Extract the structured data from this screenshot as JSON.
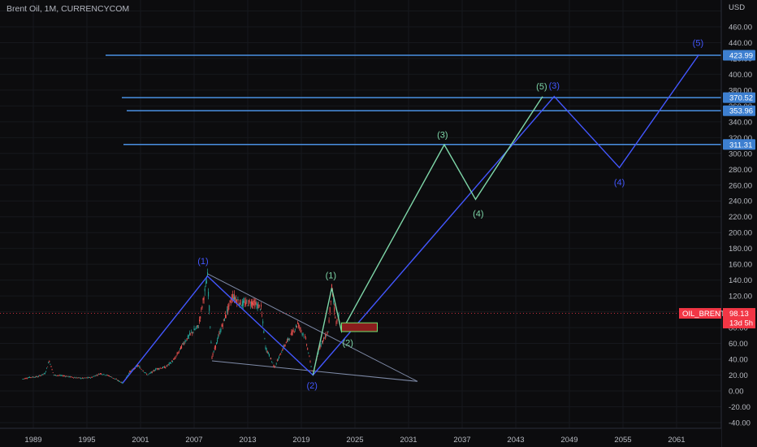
{
  "header": {
    "symbol": "Brent Oil, 1M, CURRENCYCOM",
    "currency": "USD"
  },
  "chart_data": {
    "type": "line",
    "title": "Brent Oil, 1M, CURRENCYCOM",
    "ylabel": "USD",
    "ylim": [
      -48,
      485
    ],
    "xlim": [
      1987.5,
      2068
    ],
    "x_ticks": [
      "1989",
      "1995",
      "2001",
      "2007",
      "2013",
      "2019",
      "2025",
      "2031",
      "2037",
      "2043",
      "2049",
      "2055",
      "2061"
    ],
    "y_ticks": [
      "-40.00",
      "-20.00",
      "0.00",
      "20.00",
      "40.00",
      "60.00",
      "80.00",
      "100.00",
      "120.00",
      "140.00",
      "160.00",
      "180.00",
      "200.00",
      "220.00",
      "240.00",
      "260.00",
      "280.00",
      "300.00",
      "320.00",
      "340.00",
      "360.00",
      "380.00",
      "400.00",
      "420.00",
      "440.00",
      "460.00",
      "480.00"
    ],
    "price": {
      "symbol": "OIL_BRENT",
      "last": "98.13",
      "countdown": "13d 5h",
      "color": "#f23645",
      "points": [
        [
          1987.8,
          15
        ],
        [
          1988.5,
          17
        ],
        [
          1989.5,
          18
        ],
        [
          1990.3,
          22
        ],
        [
          1990.8,
          38
        ],
        [
          1991.3,
          20
        ],
        [
          1992.5,
          19
        ],
        [
          1993.5,
          17
        ],
        [
          1994.5,
          16
        ],
        [
          1995.5,
          17
        ],
        [
          1996.5,
          22
        ],
        [
          1997.5,
          19
        ],
        [
          1998.5,
          13
        ],
        [
          1999.0,
          10
        ],
        [
          1999.8,
          24
        ],
        [
          2000.7,
          32
        ],
        [
          2001.8,
          20
        ],
        [
          2002.8,
          28
        ],
        [
          2003.8,
          30
        ],
        [
          2004.8,
          40
        ],
        [
          2005.8,
          60
        ],
        [
          2006.6,
          72
        ],
        [
          2007.5,
          82
        ],
        [
          2008.5,
          145
        ],
        [
          2009.0,
          42
        ],
        [
          2010.0,
          78
        ],
        [
          2011.3,
          120
        ],
        [
          2012.3,
          110
        ],
        [
          2013.5,
          112
        ],
        [
          2014.5,
          105
        ],
        [
          2015.0,
          55
        ],
        [
          2016.0,
          30
        ],
        [
          2017.0,
          55
        ],
        [
          2018.6,
          85
        ],
        [
          2019.5,
          65
        ],
        [
          2020.3,
          20
        ],
        [
          2021.0,
          55
        ],
        [
          2022.0,
          75
        ],
        [
          2022.4,
          130
        ],
        [
          2022.9,
          85
        ],
        [
          2023.3,
          98
        ]
      ]
    },
    "horizontal_levels": [
      {
        "value": 423.99,
        "label": "423.99"
      },
      {
        "value": 370.52,
        "label": "370.52"
      },
      {
        "value": 353.96,
        "label": "353.96"
      },
      {
        "value": 311.31,
        "label": "311.31"
      }
    ],
    "level_color": "#4a90e2",
    "waves": [
      {
        "name": "",
        "color": "#4357ff",
        "points": [
          [
            1999.0,
            10
          ],
          [
            2008.5,
            145
          ],
          [
            2020.3,
            20
          ],
          [
            2047.3,
            372
          ],
          [
            2054.6,
            282
          ],
          [
            2063.5,
            425
          ]
        ],
        "labels": [
          {
            "text": "(1)",
            "x": 2008.0,
            "y": 160
          },
          {
            "text": "(2)",
            "x": 2020.2,
            "y": 3
          },
          {
            "text": "(3)",
            "x": 2047.3,
            "y": 382
          },
          {
            "text": "(4)",
            "x": 2054.6,
            "y": 260
          },
          {
            "text": "(5)",
            "x": 2063.4,
            "y": 436
          }
        ]
      },
      {
        "name": "",
        "color": "#7ed6a8",
        "points": [
          [
            2020.3,
            20
          ],
          [
            2022.4,
            130
          ],
          [
            2023.5,
            75
          ],
          [
            2035.0,
            311
          ],
          [
            2038.5,
            242
          ],
          [
            2046.0,
            372
          ]
        ],
        "labels": [
          {
            "text": "(1)",
            "x": 2022.3,
            "y": 142
          },
          {
            "text": "(2)",
            "x": 2024.2,
            "y": 57
          },
          {
            "text": "(3)",
            "x": 2034.8,
            "y": 320
          },
          {
            "text": "(4)",
            "x": 2038.8,
            "y": 220
          },
          {
            "text": "(5)",
            "x": 2045.9,
            "y": 381
          }
        ]
      }
    ],
    "triangle": {
      "color": "#7f8ba8",
      "lines": [
        [
          [
            2008.5,
            148
          ],
          [
            2032.0,
            12
          ]
        ],
        [
          [
            2009.0,
            38
          ],
          [
            2032.0,
            12
          ]
        ]
      ]
    },
    "target_box": {
      "x0": 2023.5,
      "x1": 2027.5,
      "y0": 75,
      "y1": 86,
      "fill": "#8b1d1d",
      "stroke": "#6fe36f"
    }
  }
}
